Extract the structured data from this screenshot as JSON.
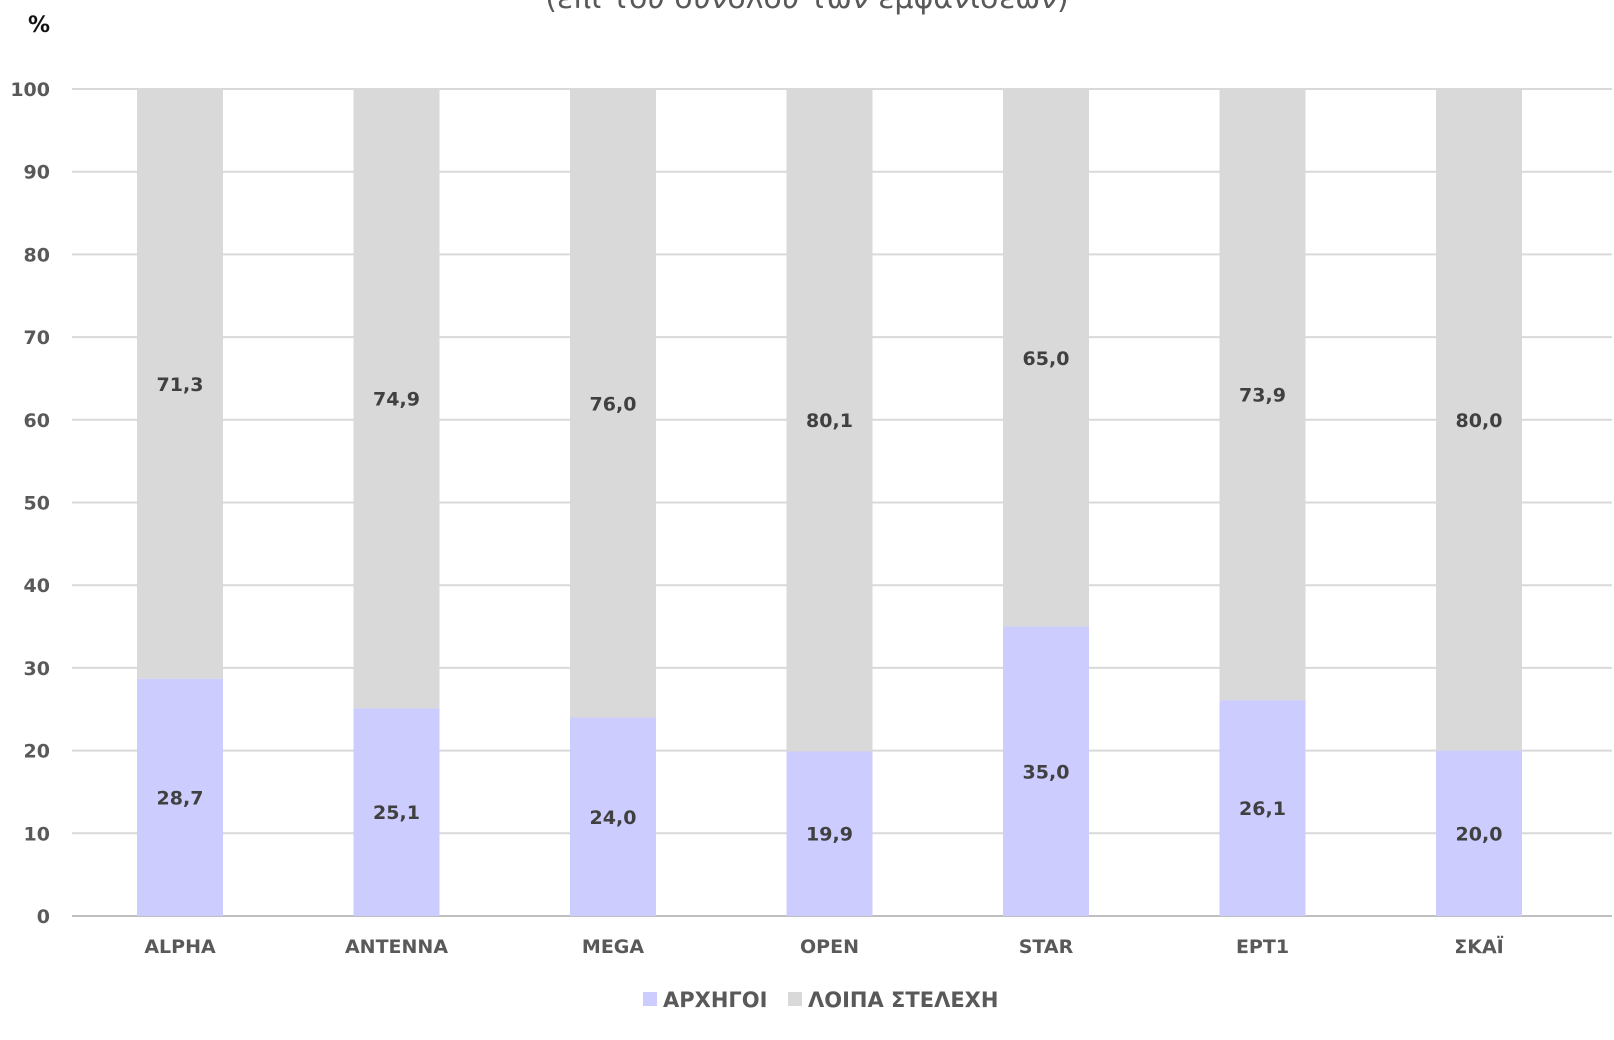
{
  "chart_data": {
    "type": "bar",
    "stacked": true,
    "title": "",
    "subtitle": "(επί του συνόλου των εμφανίσεων)",
    "xlabel": "",
    "ylabel": "%",
    "ylim": [
      0,
      100
    ],
    "yticks": [
      "0",
      "10",
      "20",
      "30",
      "40",
      "50",
      "60",
      "70",
      "80",
      "90",
      "100"
    ],
    "grid": true,
    "legend_position": "bottom",
    "categories": [
      "ALPHA",
      "ANTENNA",
      "MEGA",
      "OPEN",
      "STAR",
      "ΕΡΤ1",
      "ΣΚΑΪ"
    ],
    "series": [
      {
        "name": "ΑΡΧΗΓΟΙ",
        "color": "#ccccff",
        "values": [
          28.7,
          25.1,
          24.0,
          19.9,
          35.0,
          26.1,
          20.0
        ],
        "labels": [
          "28,7",
          "25,1",
          "24,0",
          "19,9",
          "35,0",
          "26,1",
          "20,0"
        ]
      },
      {
        "name": "ΛΟΙΠΑ ΣΤΕΛΕΧΗ",
        "color": "#d9d9d9",
        "values": [
          71.3,
          74.9,
          76.0,
          80.1,
          65.0,
          73.9,
          80.0
        ],
        "labels": [
          "71,3",
          "74,9",
          "76,0",
          "80,1",
          "65,0",
          "73,9",
          "80,0"
        ]
      }
    ]
  }
}
